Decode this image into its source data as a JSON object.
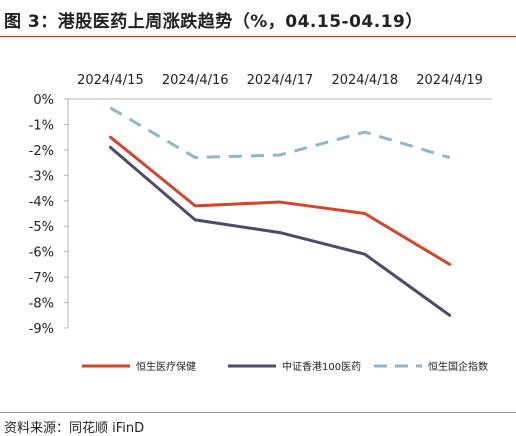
{
  "header": {
    "title": "图 3：港股医药上周涨跌趋势（%，04.15-04.19）"
  },
  "footer": {
    "source": "资料来源：同花顺 iFinD"
  },
  "colors": {
    "title_rule": "#c0392b",
    "series": [
      "#d2462a",
      "#4f4a6b",
      "#8fb6cc"
    ]
  },
  "chart_data": {
    "type": "line",
    "categories": [
      "2024/4/15",
      "2024/4/16",
      "2024/4/17",
      "2024/4/18",
      "2024/4/19"
    ],
    "x_axis_position": "top",
    "ylim": [
      -9,
      0
    ],
    "yticks": [
      0,
      -1,
      -2,
      -3,
      -4,
      -5,
      -6,
      -7,
      -8,
      -9
    ],
    "ytick_labels": [
      "0%",
      "-1%",
      "-2%",
      "-3%",
      "-4%",
      "-5%",
      "-6%",
      "-7%",
      "-8%",
      "-9%"
    ],
    "grid": false,
    "legend_position": "bottom",
    "series": [
      {
        "name": "恒生医疗保健",
        "values": [
          -1.5,
          -4.2,
          -4.05,
          -4.5,
          -6.5
        ],
        "color": "#d2462a",
        "dash": "solid"
      },
      {
        "name": "中证香港100医药",
        "values": [
          -1.9,
          -4.75,
          -5.25,
          -6.1,
          -8.5
        ],
        "color": "#4f4a6b",
        "dash": "solid"
      },
      {
        "name": "恒生国企指数",
        "values": [
          -0.35,
          -2.3,
          -2.2,
          -1.3,
          -2.3
        ],
        "color": "#8fb6cc",
        "dash": "dashed"
      }
    ]
  }
}
